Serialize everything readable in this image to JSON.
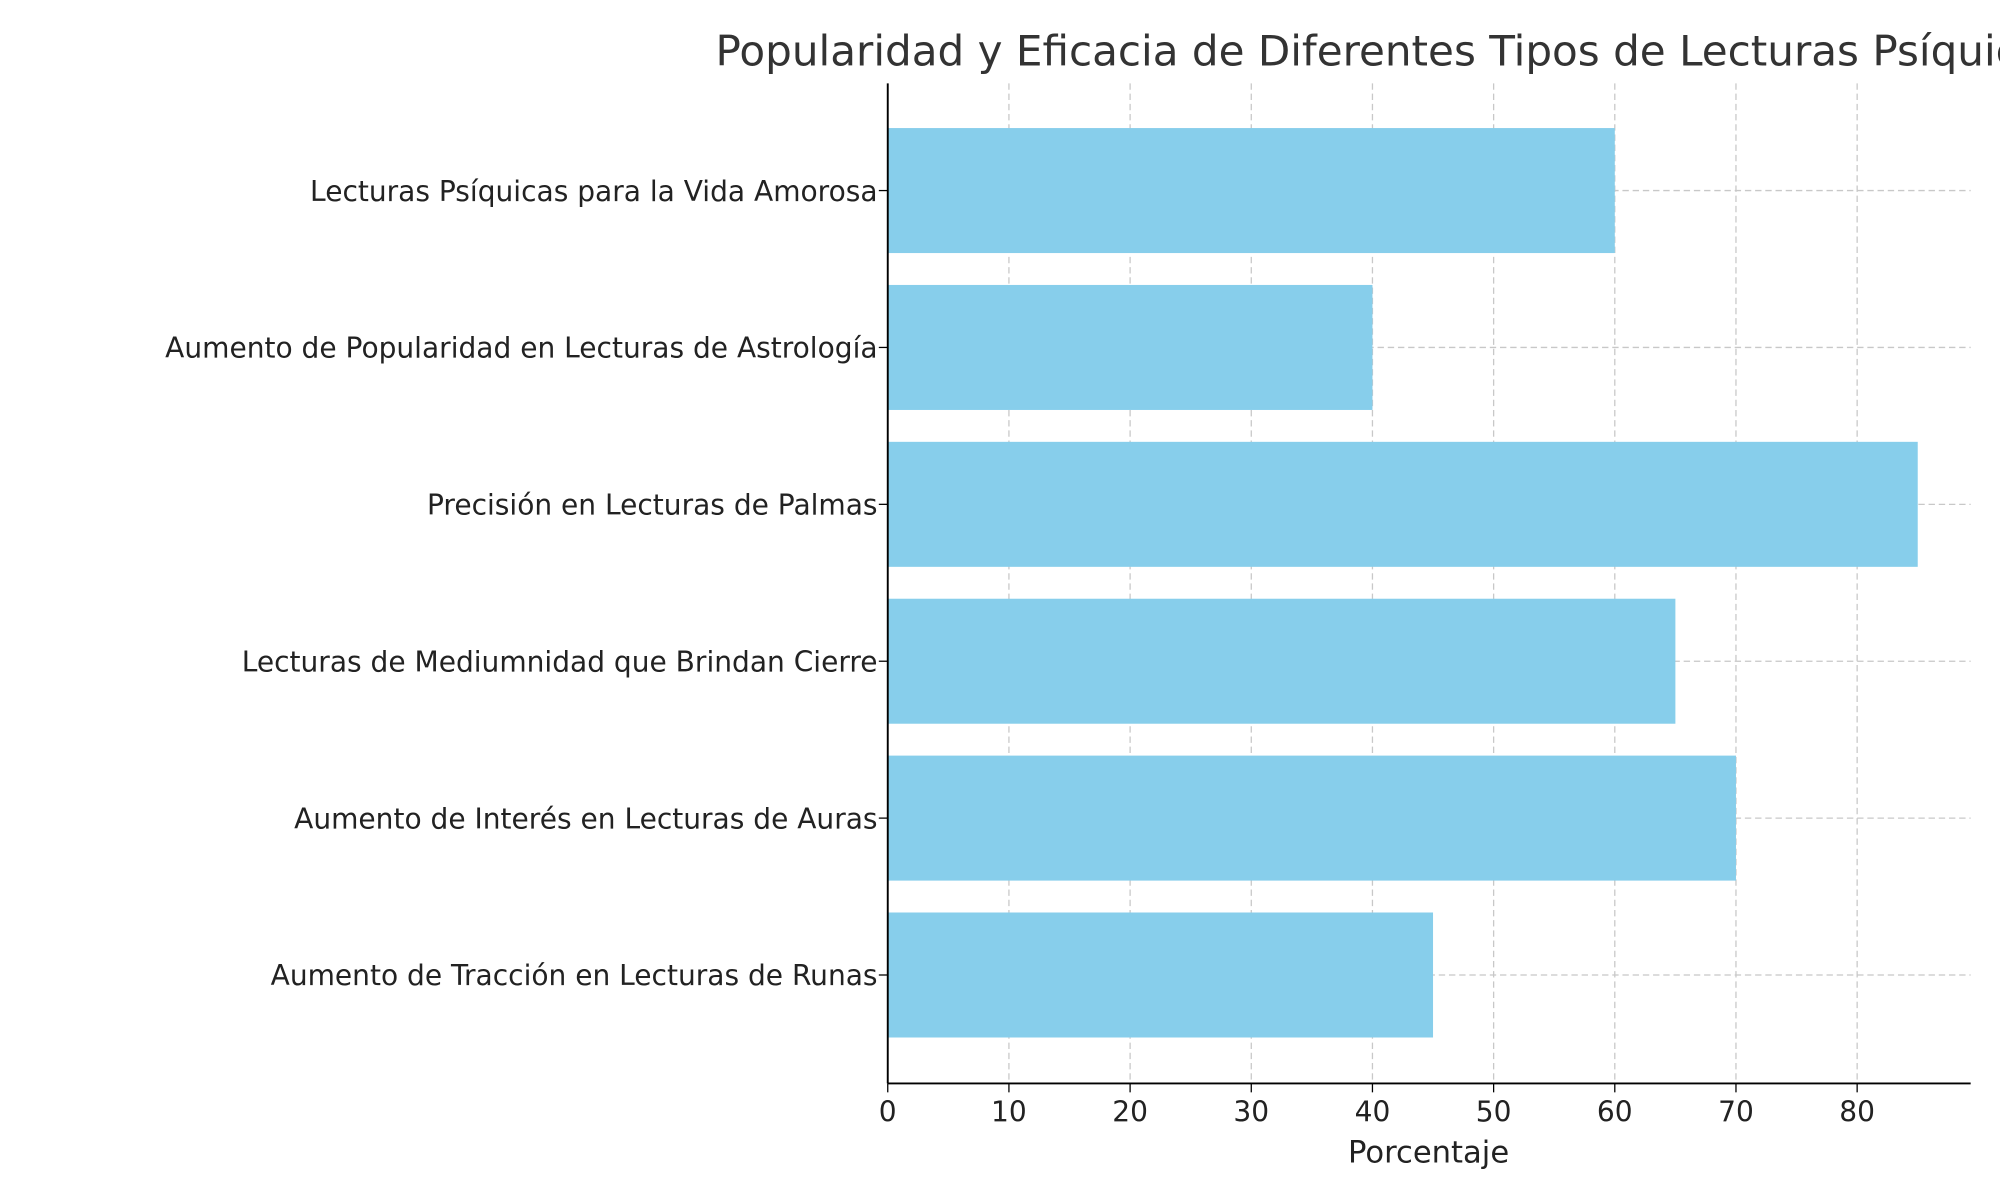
{
  "chart_data": {
    "type": "bar",
    "orientation": "horizontal",
    "title": "Popularidad y Eficacia de Diferentes Tipos de Lecturas Psíquicas",
    "xlabel": "Porcentaje",
    "ylabel": "",
    "categories": [
      "Lecturas Psíquicas para la Vida Amorosa",
      "Aumento de Popularidad en Lecturas de Astrología",
      "Precisión en Lecturas de Palmas",
      "Lecturas de Mediumnidad que Brindan Cierre",
      "Aumento de Interés en Lecturas de Auras",
      "Aumento de Tracción en Lecturas de Runas"
    ],
    "values": [
      60,
      40,
      85,
      65,
      70,
      45
    ],
    "xlim": [
      0,
      89.4
    ],
    "xticks": [
      "0",
      "10",
      "20",
      "30",
      "40",
      "50",
      "60",
      "70",
      "80"
    ],
    "grid": true,
    "bar_color": "#87CEEB"
  }
}
